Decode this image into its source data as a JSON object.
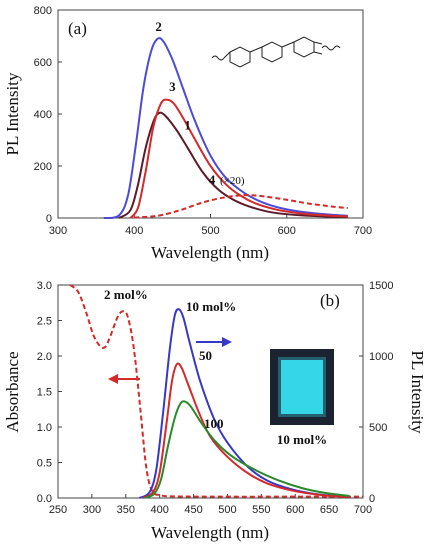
{
  "colors": {
    "curve1": "#5c1a2a",
    "curve2": "#4b4bd8",
    "curve3": "#d42a2a",
    "curve4": "#d42a2a",
    "red": "#d42a2a",
    "blue": "#3838c8",
    "green": "#2a8a2a",
    "film_bg": "#1b2230",
    "film": "#35d6e8"
  },
  "chart_data": [
    {
      "type": "line",
      "panel_label": "(a)",
      "xlabel": "Wavelength (nm)",
      "ylabel": "PL Intensity",
      "xlim": [
        300,
        700
      ],
      "ylim": [
        0,
        800
      ],
      "xticks": [
        300,
        400,
        500,
        600,
        700
      ],
      "yticks": [
        0,
        200,
        400,
        600,
        800
      ],
      "series": [
        {
          "name": "1",
          "color_key": "curve1",
          "style": "solid",
          "points": [
            [
              380,
              0
            ],
            [
              395,
              30
            ],
            [
              405,
              130
            ],
            [
              415,
              270
            ],
            [
              425,
              370
            ],
            [
              432,
              403
            ],
            [
              440,
              395
            ],
            [
              455,
              340
            ],
            [
              470,
              270
            ],
            [
              490,
              175
            ],
            [
              510,
              110
            ],
            [
              530,
              70
            ],
            [
              550,
              45
            ],
            [
              580,
              22
            ],
            [
              620,
              10
            ],
            [
              660,
              5
            ],
            [
              680,
              3
            ]
          ]
        },
        {
          "name": "2",
          "color_key": "curve2",
          "style": "solid",
          "points": [
            [
              360,
              0
            ],
            [
              380,
              10
            ],
            [
              392,
              90
            ],
            [
              402,
              280
            ],
            [
              412,
              500
            ],
            [
              422,
              640
            ],
            [
              430,
              688
            ],
            [
              438,
              680
            ],
            [
              450,
              610
            ],
            [
              465,
              490
            ],
            [
              480,
              370
            ],
            [
              500,
              240
            ],
            [
              520,
              155
            ],
            [
              545,
              95
            ],
            [
              570,
              58
            ],
            [
              600,
              33
            ],
            [
              630,
              20
            ],
            [
              660,
              12
            ],
            [
              680,
              9
            ]
          ]
        },
        {
          "name": "3",
          "color_key": "curve3",
          "style": "solid",
          "points": [
            [
              395,
              0
            ],
            [
              405,
              40
            ],
            [
              415,
              180
            ],
            [
              425,
              350
            ],
            [
              435,
              440
            ],
            [
              443,
              455
            ],
            [
              452,
              440
            ],
            [
              465,
              380
            ],
            [
              480,
              300
            ],
            [
              500,
              200
            ],
            [
              520,
              130
            ],
            [
              540,
              85
            ],
            [
              560,
              55
            ],
            [
              590,
              30
            ],
            [
              620,
              17
            ],
            [
              650,
              10
            ],
            [
              680,
              6
            ]
          ]
        },
        {
          "name": "4",
          "note": "(×20)",
          "color_key": "curve4",
          "style": "dashed",
          "points": [
            [
              400,
              2
            ],
            [
              430,
              8
            ],
            [
              460,
              30
            ],
            [
              490,
              60
            ],
            [
              520,
              80
            ],
            [
              545,
              88
            ],
            [
              570,
              83
            ],
            [
              600,
              70
            ],
            [
              630,
              55
            ],
            [
              660,
              44
            ],
            [
              680,
              38
            ]
          ]
        }
      ],
      "annotations": [
        {
          "text": "2",
          "x": 432,
          "y": 720
        },
        {
          "text": "3",
          "x": 450,
          "y": 488
        },
        {
          "text": "1",
          "x": 470,
          "y": 340
        },
        {
          "text": "4",
          "x": 502,
          "y": 130,
          "suffix": "(×20)"
        }
      ]
    },
    {
      "type": "line",
      "panel_label": "(b)",
      "xlabel": "Wavelength (nm)",
      "ylabel_left": "Absorbance",
      "ylabel_right": "PL Intensity",
      "xlim": [
        250,
        700
      ],
      "ylim_left": [
        0,
        3.0
      ],
      "ylim_right": [
        0,
        1500
      ],
      "xticks": [
        250,
        300,
        350,
        400,
        450,
        500,
        550,
        600,
        650,
        700
      ],
      "yticks_left": [
        "0.0",
        "0.5",
        "1.0",
        "1.5",
        "2.0",
        "2.5",
        "3.0"
      ],
      "yticks_right": [
        0,
        500,
        1000,
        1500
      ],
      "absorbance": {
        "name": "2 mol%",
        "color_key": "red",
        "style": "dashed",
        "points": [
          [
            268,
            3.0
          ],
          [
            280,
            2.9
          ],
          [
            292,
            2.6
          ],
          [
            302,
            2.3
          ],
          [
            312,
            2.14
          ],
          [
            320,
            2.13
          ],
          [
            328,
            2.3
          ],
          [
            338,
            2.55
          ],
          [
            346,
            2.63
          ],
          [
            353,
            2.55
          ],
          [
            362,
            2.1
          ],
          [
            372,
            1.2
          ],
          [
            380,
            0.45
          ],
          [
            388,
            0.12
          ],
          [
            400,
            0.04
          ],
          [
            450,
            0.02
          ],
          [
            700,
            0.02
          ]
        ]
      },
      "pl": [
        {
          "name": "10 mol%",
          "color_key": "blue",
          "points": [
            [
              370,
              0
            ],
            [
              385,
              40
            ],
            [
              395,
              200
            ],
            [
              405,
              600
            ],
            [
              415,
              1050
            ],
            [
              422,
              1280
            ],
            [
              428,
              1330
            ],
            [
              435,
              1270
            ],
            [
              445,
              1080
            ],
            [
              460,
              820
            ],
            [
              480,
              560
            ],
            [
              500,
              390
            ],
            [
              530,
              220
            ],
            [
              560,
              120
            ],
            [
              600,
              55
            ],
            [
              640,
              22
            ],
            [
              680,
              8
            ]
          ]
        },
        {
          "name": "50",
          "color_key": "red",
          "points": [
            [
              375,
              0
            ],
            [
              390,
              40
            ],
            [
              400,
              180
            ],
            [
              410,
              520
            ],
            [
              418,
              820
            ],
            [
              425,
              940
            ],
            [
              432,
              920
            ],
            [
              442,
              800
            ],
            [
              458,
              600
            ],
            [
              475,
              430
            ],
            [
              500,
              290
            ],
            [
              530,
              175
            ],
            [
              560,
              100
            ],
            [
              600,
              48
            ],
            [
              640,
              20
            ],
            [
              680,
              8
            ]
          ]
        },
        {
          "name": "100",
          "color_key": "green",
          "points": [
            [
              378,
              0
            ],
            [
              392,
              30
            ],
            [
              402,
              130
            ],
            [
              412,
              360
            ],
            [
              422,
              560
            ],
            [
              430,
              660
            ],
            [
              436,
              680
            ],
            [
              445,
              650
            ],
            [
              460,
              540
            ],
            [
              480,
              410
            ],
            [
              505,
              300
            ],
            [
              540,
              200
            ],
            [
              575,
              125
            ],
            [
              610,
              70
            ],
            [
              645,
              35
            ],
            [
              680,
              15
            ]
          ]
        }
      ],
      "labels": {
        "mol_2": "2 mol%",
        "mol_10": "10 mol%",
        "mol_50": "50",
        "mol_100": "100",
        "film_caption": "10 mol%"
      }
    }
  ]
}
